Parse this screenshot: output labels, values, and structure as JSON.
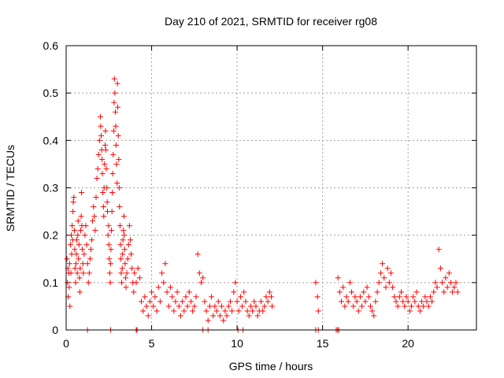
{
  "chart_data": {
    "type": "scatter",
    "title": "Day 210 of 2021, SRMTID for receiver rg08",
    "xlabel": "GPS time / hours",
    "ylabel": "SRMTID / TECUs",
    "xlim": [
      0,
      24
    ],
    "ylim": [
      0,
      0.6
    ],
    "x_ticks": [
      0,
      5,
      10,
      15,
      20
    ],
    "y_ticks": [
      0,
      0.1,
      0.2,
      0.3,
      0.4,
      0.5,
      0.6
    ],
    "x_tick_labels": [
      "0",
      "5",
      "10",
      "15",
      "20"
    ],
    "y_tick_labels": [
      "0",
      "0.1",
      "0.2",
      "0.3",
      "0.4",
      "0.5",
      "0.6"
    ],
    "grid": true,
    "marker": "+",
    "color": "#ff0000",
    "series": [
      {
        "name": "SRMTID",
        "points": [
          [
            0.05,
            0.15
          ],
          [
            0.08,
            0.1
          ],
          [
            0.1,
            0.13
          ],
          [
            0.12,
            0.07
          ],
          [
            0.15,
            0.12
          ],
          [
            0.18,
            0.09
          ],
          [
            0.2,
            0.14
          ],
          [
            0.22,
            0.05
          ],
          [
            0.25,
            0.18
          ],
          [
            0.28,
            0.12
          ],
          [
            0.3,
            0.2
          ],
          [
            0.32,
            0.16
          ],
          [
            0.35,
            0.22
          ],
          [
            0.38,
            0.19
          ],
          [
            0.4,
            0.25
          ],
          [
            0.42,
            0.27
          ],
          [
            0.45,
            0.28
          ],
          [
            0.48,
            0.21
          ],
          [
            0.5,
            0.17
          ],
          [
            0.52,
            0.13
          ],
          [
            0.55,
            0.1
          ],
          [
            0.58,
            0.14
          ],
          [
            0.6,
            0.16
          ],
          [
            0.62,
            0.19
          ],
          [
            0.65,
            0.12
          ],
          [
            0.68,
            0.2
          ],
          [
            0.7,
            0.23
          ],
          [
            0.72,
            0.15
          ],
          [
            0.75,
            0.18
          ],
          [
            0.78,
            0.11
          ],
          [
            0.8,
            0.08
          ],
          [
            0.82,
            0.13
          ],
          [
            0.85,
            0.21
          ],
          [
            0.88,
            0.24
          ],
          [
            0.9,
            0.29
          ],
          [
            0.92,
            0.22
          ],
          [
            0.95,
            0.17
          ],
          [
            0.98,
            0.14
          ],
          [
            1.0,
            0.12
          ],
          [
            1.05,
            0.16
          ],
          [
            1.1,
            0.2
          ],
          [
            1.15,
            0.22
          ],
          [
            1.2,
            0.18
          ],
          [
            1.25,
            0.14
          ],
          [
            1.3,
            0.1
          ],
          [
            1.35,
            0.12
          ],
          [
            1.4,
            0.15
          ],
          [
            1.45,
            0.17
          ],
          [
            1.5,
            0.19
          ],
          [
            1.55,
            0.23
          ],
          [
            1.6,
            0.26
          ],
          [
            1.65,
            0.24
          ],
          [
            1.7,
            0.21
          ],
          [
            1.75,
            0.28
          ],
          [
            1.8,
            0.32
          ],
          [
            1.85,
            0.34
          ],
          [
            1.9,
            0.37
          ],
          [
            1.95,
            0.4
          ],
          [
            2.0,
            0.45
          ],
          [
            2.02,
            0.43
          ],
          [
            2.05,
            0.41
          ],
          [
            2.08,
            0.38
          ],
          [
            2.1,
            0.36
          ],
          [
            2.12,
            0.33
          ],
          [
            2.15,
            0.29
          ],
          [
            2.18,
            0.26
          ],
          [
            2.2,
            0.24
          ],
          [
            2.22,
            0.3
          ],
          [
            2.25,
            0.35
          ],
          [
            2.28,
            0.39
          ],
          [
            2.3,
            0.42
          ],
          [
            2.32,
            0.38
          ],
          [
            2.35,
            0.34
          ],
          [
            2.38,
            0.3
          ],
          [
            2.4,
            0.27
          ],
          [
            2.42,
            0.25
          ],
          [
            2.45,
            0.2
          ],
          [
            2.48,
            0.22
          ],
          [
            2.5,
            0.18
          ],
          [
            2.52,
            0.15
          ],
          [
            2.55,
            0.12
          ],
          [
            2.58,
            0.1
          ],
          [
            2.6,
            0.14
          ],
          [
            2.62,
            0.17
          ],
          [
            2.65,
            0.21
          ],
          [
            2.68,
            0.25
          ],
          [
            2.7,
            0.29
          ],
          [
            2.72,
            0.33
          ],
          [
            2.75,
            0.37
          ],
          [
            2.78,
            0.42
          ],
          [
            2.8,
            0.48
          ],
          [
            2.82,
            0.53
          ],
          [
            2.85,
            0.5
          ],
          [
            2.88,
            0.46
          ],
          [
            2.9,
            0.43
          ],
          [
            2.92,
            0.39
          ],
          [
            2.95,
            0.35
          ],
          [
            2.98,
            0.31
          ],
          [
            3.0,
            0.52
          ],
          [
            3.02,
            0.47
          ],
          [
            3.05,
            0.41
          ],
          [
            3.08,
            0.36
          ],
          [
            3.1,
            0.3
          ],
          [
            3.12,
            0.26
          ],
          [
            3.15,
            0.22
          ],
          [
            3.18,
            0.18
          ],
          [
            3.2,
            0.15
          ],
          [
            3.22,
            0.12
          ],
          [
            3.25,
            0.1
          ],
          [
            3.28,
            0.13
          ],
          [
            3.3,
            0.16
          ],
          [
            3.32,
            0.19
          ],
          [
            3.35,
            0.21
          ],
          [
            3.38,
            0.24
          ],
          [
            3.4,
            0.2
          ],
          [
            3.42,
            0.17
          ],
          [
            3.45,
            0.14
          ],
          [
            3.48,
            0.11
          ],
          [
            3.5,
            0.09
          ],
          [
            3.55,
            0.12
          ],
          [
            3.6,
            0.15
          ],
          [
            3.65,
            0.18
          ],
          [
            3.7,
            0.22
          ],
          [
            3.75,
            0.19
          ],
          [
            3.8,
            0.16
          ],
          [
            3.85,
            0.13
          ],
          [
            3.9,
            0.1
          ],
          [
            3.95,
            0.08
          ],
          [
            4.0,
            0.12
          ],
          [
            4.1,
            0.1
          ],
          [
            4.2,
            0.13
          ],
          [
            4.3,
            0.11
          ],
          [
            4.4,
            0.06
          ],
          [
            4.5,
            0.04
          ],
          [
            4.6,
            0.07
          ],
          [
            4.7,
            0.05
          ],
          [
            4.8,
            0.03
          ],
          [
            4.9,
            0.06
          ],
          [
            5.0,
            0.08
          ],
          [
            5.1,
            0.05
          ],
          [
            5.2,
            0.07
          ],
          [
            5.3,
            0.04
          ],
          [
            5.4,
            0.09
          ],
          [
            5.5,
            0.06
          ],
          [
            5.6,
            0.12
          ],
          [
            5.7,
            0.1
          ],
          [
            5.8,
            0.14
          ],
          [
            5.9,
            0.08
          ],
          [
            6.0,
            0.05
          ],
          [
            6.1,
            0.09
          ],
          [
            6.2,
            0.07
          ],
          [
            6.3,
            0.04
          ],
          [
            6.4,
            0.06
          ],
          [
            6.5,
            0.08
          ],
          [
            6.6,
            0.05
          ],
          [
            6.7,
            0.03
          ],
          [
            6.8,
            0.06
          ],
          [
            6.9,
            0.04
          ],
          [
            7.0,
            0.07
          ],
          [
            7.1,
            0.05
          ],
          [
            7.2,
            0.08
          ],
          [
            7.3,
            0.06
          ],
          [
            7.4,
            0.04
          ],
          [
            7.5,
            0.05
          ],
          [
            7.6,
            0.07
          ],
          [
            7.7,
            0.16
          ],
          [
            7.8,
            0.12
          ],
          [
            7.9,
            0.1
          ],
          [
            8.0,
            0.11
          ],
          [
            8.1,
            0.06
          ],
          [
            8.2,
            0.04
          ],
          [
            8.3,
            0.02
          ],
          [
            8.4,
            0.05
          ],
          [
            8.5,
            0.07
          ],
          [
            8.6,
            0.03
          ],
          [
            8.7,
            0.05
          ],
          [
            8.8,
            0.04
          ],
          [
            8.9,
            0.06
          ],
          [
            9.0,
            0.03
          ],
          [
            9.1,
            0.05
          ],
          [
            9.2,
            0.02
          ],
          [
            9.3,
            0.04
          ],
          [
            9.4,
            0.03
          ],
          [
            9.5,
            0.05
          ],
          [
            9.6,
            0.06
          ],
          [
            9.7,
            0.04
          ],
          [
            9.8,
            0.08
          ],
          [
            9.9,
            0.1
          ],
          [
            10.0,
            0.06
          ],
          [
            10.1,
            0.04
          ],
          [
            10.2,
            0.07
          ],
          [
            10.3,
            0.05
          ],
          [
            10.4,
            0.08
          ],
          [
            10.5,
            0.06
          ],
          [
            10.6,
            0.04
          ],
          [
            10.7,
            0.03
          ],
          [
            10.8,
            0.05
          ],
          [
            10.9,
            0.04
          ],
          [
            11.0,
            0.06
          ],
          [
            11.1,
            0.05
          ],
          [
            11.2,
            0.03
          ],
          [
            11.3,
            0.04
          ],
          [
            11.4,
            0.06
          ],
          [
            11.5,
            0.04
          ],
          [
            11.6,
            0.05
          ],
          [
            11.7,
            0.07
          ],
          [
            11.8,
            0.06
          ],
          [
            11.9,
            0.08
          ],
          [
            12.0,
            0.07
          ],
          [
            12.05,
            0.05
          ],
          [
            14.6,
            0.1
          ],
          [
            14.7,
            0.07
          ],
          [
            14.75,
            0.04
          ],
          [
            15.9,
            0.11
          ],
          [
            16.0,
            0.08
          ],
          [
            16.1,
            0.06
          ],
          [
            16.2,
            0.09
          ],
          [
            16.3,
            0.05
          ],
          [
            16.4,
            0.07
          ],
          [
            16.5,
            0.06
          ],
          [
            16.6,
            0.1
          ],
          [
            16.7,
            0.08
          ],
          [
            16.8,
            0.05
          ],
          [
            16.9,
            0.07
          ],
          [
            17.0,
            0.06
          ],
          [
            17.1,
            0.04
          ],
          [
            17.2,
            0.07
          ],
          [
            17.3,
            0.05
          ],
          [
            17.4,
            0.08
          ],
          [
            17.5,
            0.06
          ],
          [
            17.6,
            0.09
          ],
          [
            17.7,
            0.07
          ],
          [
            17.8,
            0.05
          ],
          [
            17.9,
            0.04
          ],
          [
            18.0,
            0.03
          ],
          [
            18.1,
            0.06
          ],
          [
            18.2,
            0.08
          ],
          [
            18.3,
            0.1
          ],
          [
            18.4,
            0.12
          ],
          [
            18.5,
            0.14
          ],
          [
            18.6,
            0.11
          ],
          [
            18.7,
            0.09
          ],
          [
            18.8,
            0.13
          ],
          [
            18.9,
            0.1
          ],
          [
            19.0,
            0.12
          ],
          [
            19.1,
            0.09
          ],
          [
            19.2,
            0.07
          ],
          [
            19.3,
            0.06
          ],
          [
            19.4,
            0.05
          ],
          [
            19.5,
            0.07
          ],
          [
            19.6,
            0.08
          ],
          [
            19.7,
            0.06
          ],
          [
            19.8,
            0.05
          ],
          [
            19.9,
            0.07
          ],
          [
            20.0,
            0.06
          ],
          [
            20.1,
            0.04
          ],
          [
            20.2,
            0.05
          ],
          [
            20.3,
            0.07
          ],
          [
            20.4,
            0.06
          ],
          [
            20.5,
            0.08
          ],
          [
            20.6,
            0.05
          ],
          [
            20.7,
            0.04
          ],
          [
            20.8,
            0.06
          ],
          [
            20.9,
            0.05
          ],
          [
            21.0,
            0.07
          ],
          [
            21.1,
            0.06
          ],
          [
            21.2,
            0.05
          ],
          [
            21.3,
            0.07
          ],
          [
            21.4,
            0.06
          ],
          [
            21.5,
            0.08
          ],
          [
            21.6,
            0.1
          ],
          [
            21.7,
            0.09
          ],
          [
            21.8,
            0.17
          ],
          [
            21.9,
            0.13
          ],
          [
            22.0,
            0.1
          ],
          [
            22.1,
            0.08
          ],
          [
            22.2,
            0.11
          ],
          [
            22.3,
            0.09
          ],
          [
            22.4,
            0.12
          ],
          [
            22.5,
            0.1
          ],
          [
            22.6,
            0.08
          ],
          [
            22.7,
            0.09
          ],
          [
            22.8,
            0.1
          ],
          [
            22.9,
            0.08
          ]
        ],
        "zero_points": [
          1.25,
          2.6,
          4.1,
          4.15,
          8.0,
          8.3,
          10.05,
          10.35,
          14.6,
          14.75,
          15.8,
          15.88,
          15.95
        ]
      }
    ]
  }
}
